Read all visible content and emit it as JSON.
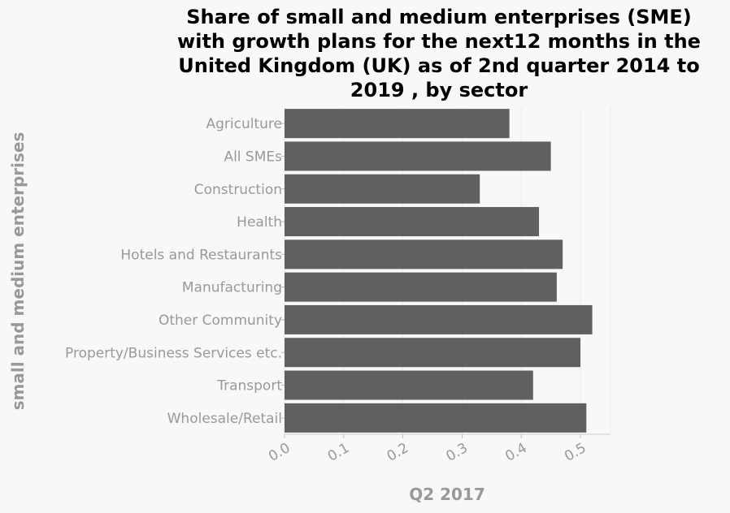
{
  "chart_data": {
    "type": "bar",
    "orientation": "horizontal",
    "title": "Share of small and medium enterprises (SME) with growth plans for the next12 months in the United Kingdom (UK) as of 2nd quarter 2014 to 2019 , by sector",
    "xlabel": "Q2 2017",
    "ylabel": "small and medium enterprises",
    "categories": [
      "Agriculture",
      "All SMEs",
      "Construction",
      "Health",
      "Hotels and Restaurants",
      "Manufacturing",
      "Other Community",
      "Property/Business Services etc.",
      "Transport",
      "Wholesale/Retail"
    ],
    "values": [
      0.38,
      0.45,
      0.33,
      0.43,
      0.47,
      0.46,
      0.52,
      0.5,
      0.42,
      0.51
    ],
    "xlim": [
      0,
      0.55
    ],
    "xticks": [
      "0.0",
      "0.1",
      "0.2",
      "0.3",
      "0.4",
      "0.5"
    ],
    "bar_color": "#606060",
    "grid": true
  }
}
